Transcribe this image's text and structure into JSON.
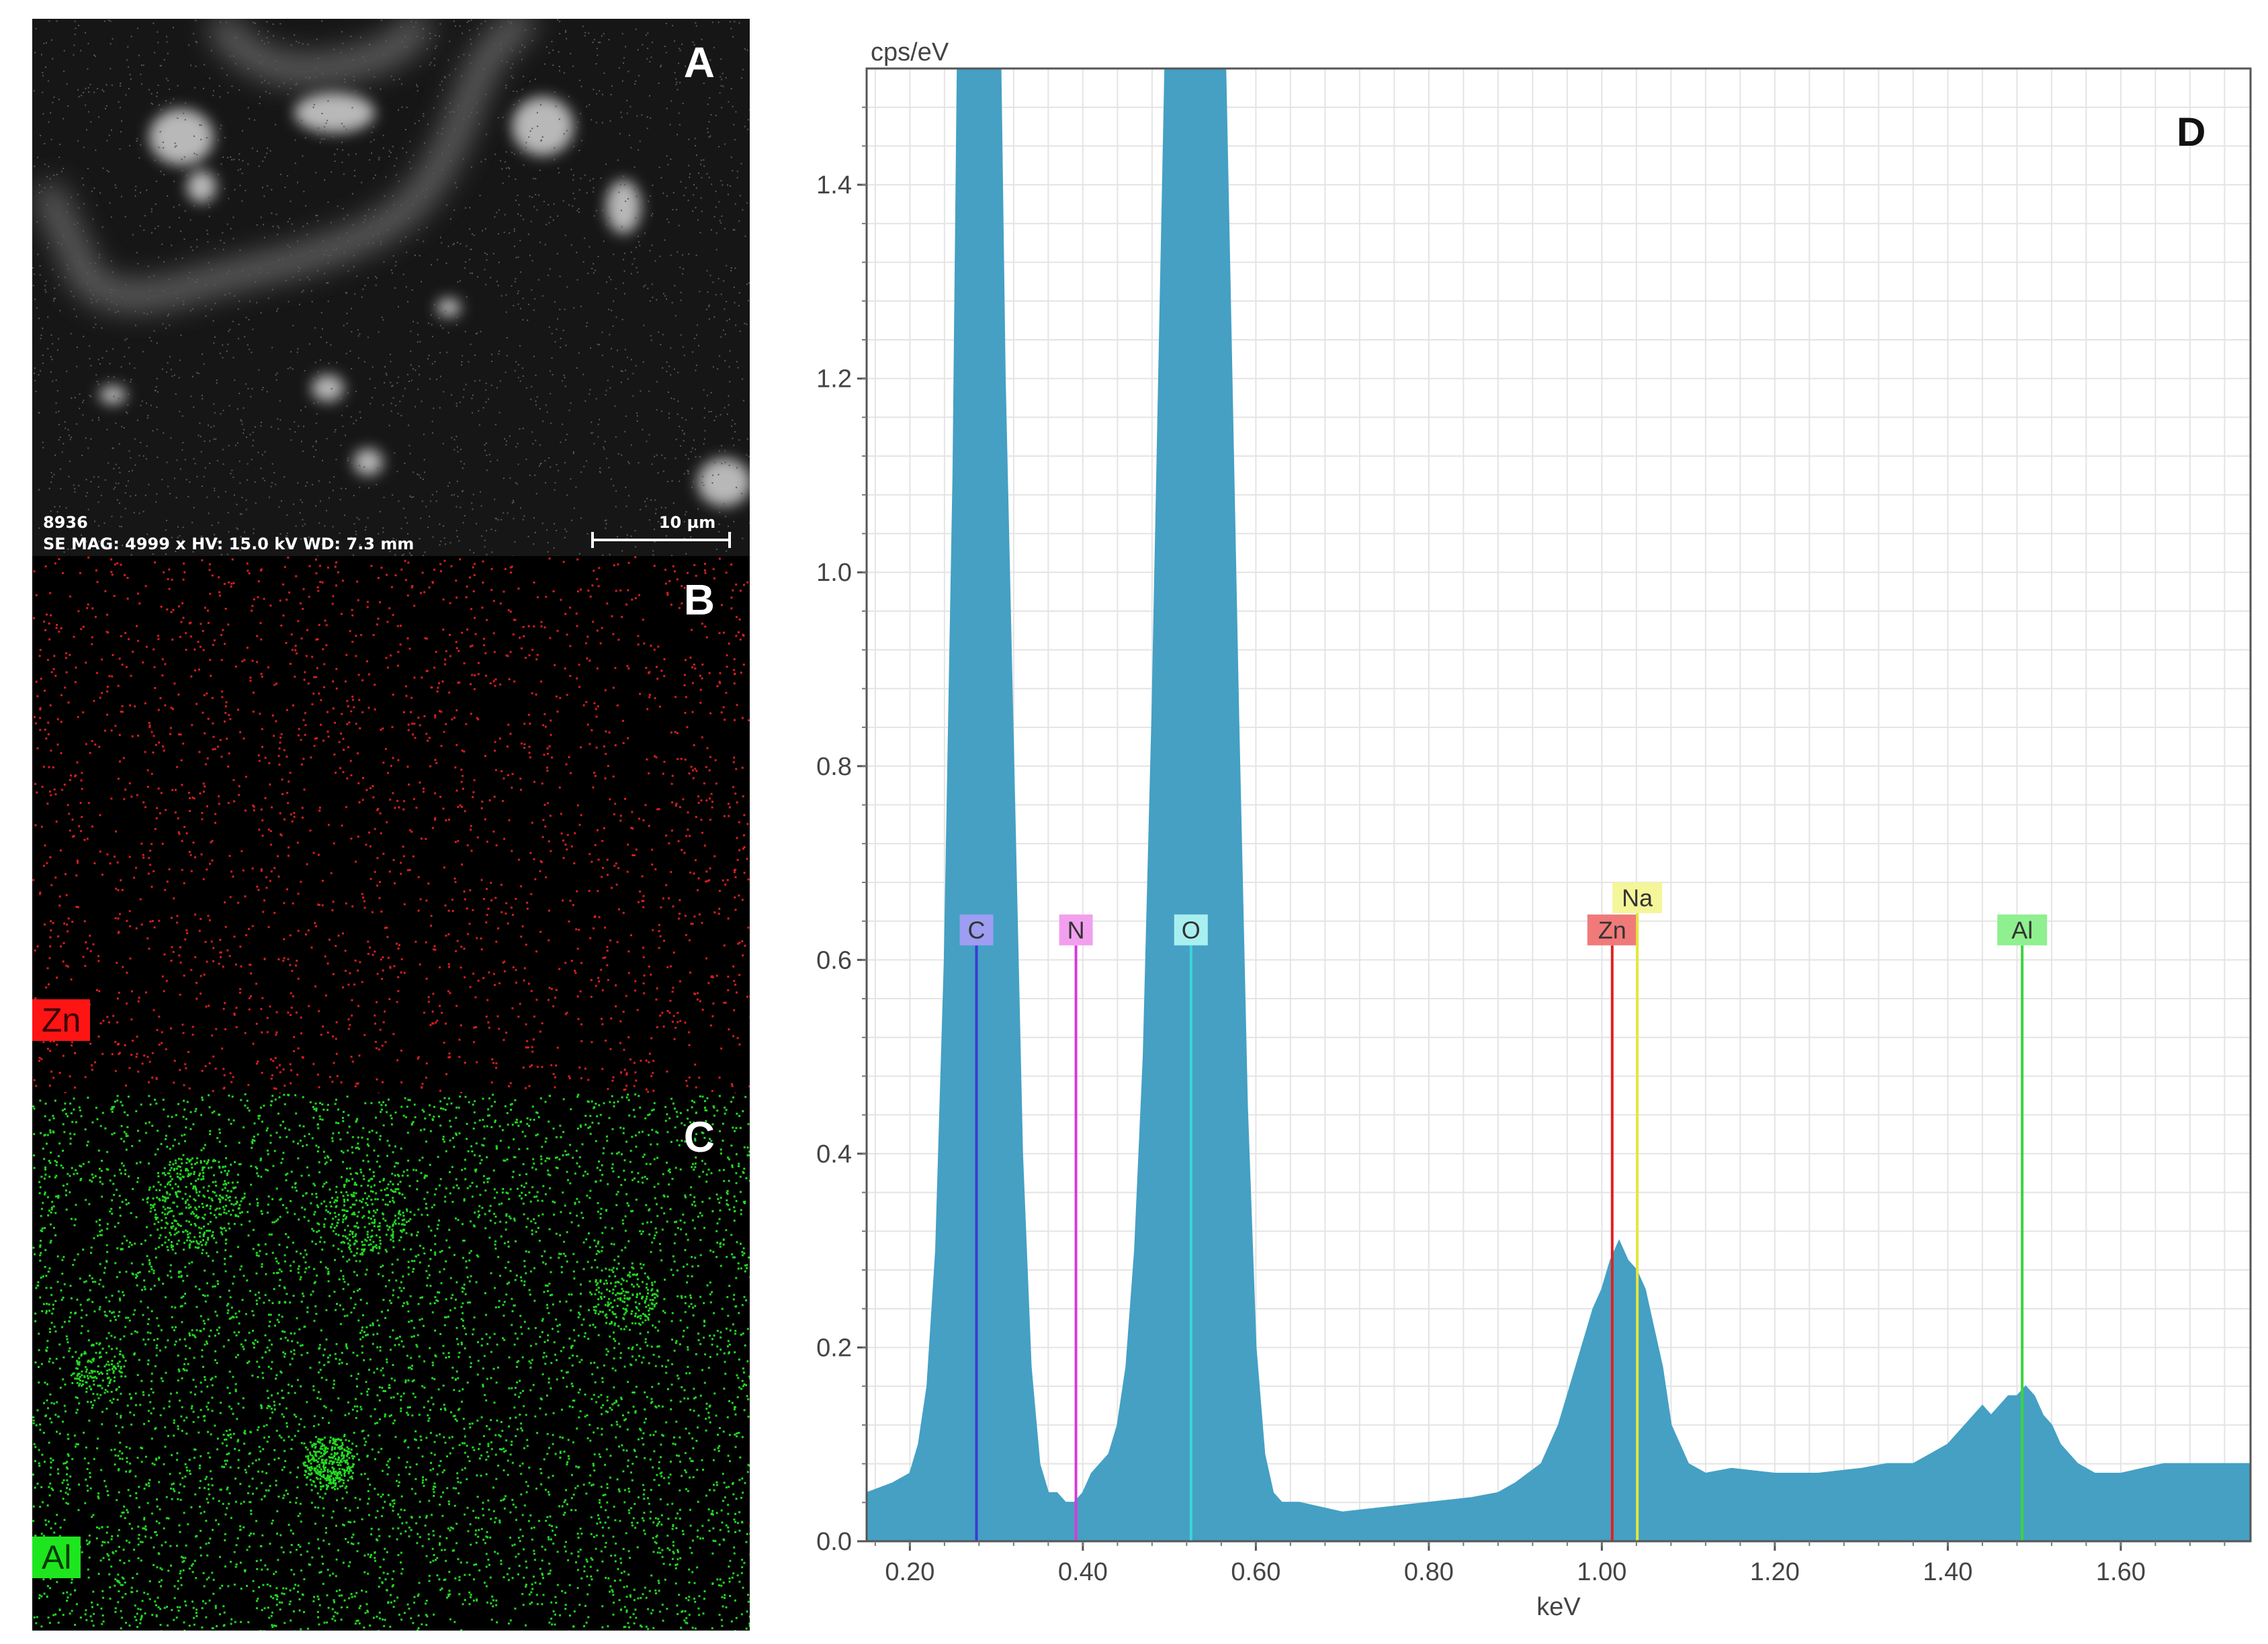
{
  "panels": {
    "a": {
      "letter": "A",
      "sem_id": "8936",
      "sem_params": "SE  MAG: 4999 x  HV: 15.0 kV  WD: 7.3 mm",
      "scale_label": "10 µm"
    },
    "b": {
      "letter": "B",
      "element": "Zn",
      "dot_color": "#d81e1e"
    },
    "c": {
      "letter": "C",
      "element": "Al",
      "dot_color": "#22d822"
    }
  },
  "chart_data": {
    "type": "area",
    "panel_letter": "D",
    "ylabel": "cps/eV",
    "xlabel": "keV",
    "xlim": [
      0.15,
      1.75
    ],
    "ylim": [
      0,
      1.52
    ],
    "x_ticks": [
      "0.20",
      "0.40",
      "0.60",
      "0.80",
      "1.00",
      "1.20",
      "1.40",
      "1.60"
    ],
    "y_ticks": [
      "0.0",
      "0.2",
      "0.4",
      "0.6",
      "0.8",
      "1.0",
      "1.2",
      "1.4"
    ],
    "grid": true,
    "fill_color": "#45a0c4",
    "spectrum": {
      "x": [
        0.15,
        0.18,
        0.2,
        0.21,
        0.22,
        0.23,
        0.24,
        0.25,
        0.255,
        0.26,
        0.305,
        0.31,
        0.32,
        0.33,
        0.34,
        0.35,
        0.36,
        0.37,
        0.38,
        0.39,
        0.4,
        0.41,
        0.42,
        0.43,
        0.44,
        0.45,
        0.46,
        0.47,
        0.48,
        0.49,
        0.495,
        0.565,
        0.57,
        0.58,
        0.59,
        0.6,
        0.61,
        0.62,
        0.63,
        0.65,
        0.7,
        0.75,
        0.8,
        0.85,
        0.88,
        0.9,
        0.93,
        0.95,
        0.97,
        0.99,
        1.0,
        1.01,
        1.02,
        1.025,
        1.03,
        1.04,
        1.05,
        1.06,
        1.07,
        1.08,
        1.1,
        1.12,
        1.15,
        1.2,
        1.25,
        1.3,
        1.33,
        1.36,
        1.38,
        1.4,
        1.42,
        1.44,
        1.45,
        1.46,
        1.47,
        1.48,
        1.49,
        1.5,
        1.51,
        1.52,
        1.53,
        1.55,
        1.57,
        1.6,
        1.65,
        1.7,
        1.75
      ],
      "y": [
        0.05,
        0.06,
        0.07,
        0.1,
        0.16,
        0.3,
        0.6,
        1.1,
        1.52,
        1.52,
        1.52,
        1.2,
        0.8,
        0.4,
        0.18,
        0.08,
        0.05,
        0.05,
        0.04,
        0.04,
        0.05,
        0.07,
        0.08,
        0.09,
        0.12,
        0.18,
        0.3,
        0.5,
        0.85,
        1.3,
        1.52,
        1.52,
        1.3,
        0.85,
        0.45,
        0.2,
        0.09,
        0.05,
        0.04,
        0.04,
        0.03,
        0.035,
        0.04,
        0.045,
        0.05,
        0.06,
        0.08,
        0.12,
        0.18,
        0.24,
        0.26,
        0.29,
        0.31,
        0.3,
        0.29,
        0.28,
        0.26,
        0.22,
        0.18,
        0.12,
        0.08,
        0.07,
        0.075,
        0.07,
        0.07,
        0.075,
        0.08,
        0.08,
        0.09,
        0.1,
        0.12,
        0.14,
        0.13,
        0.14,
        0.15,
        0.15,
        0.16,
        0.15,
        0.13,
        0.12,
        0.1,
        0.08,
        0.07,
        0.07,
        0.08,
        0.08,
        0.08
      ]
    },
    "element_lines": [
      {
        "label": "C",
        "energy": 0.277,
        "line_color": "#3a3ad6",
        "tag_color": "#9d9df2",
        "tag_row": 0
      },
      {
        "label": "N",
        "energy": 0.392,
        "line_color": "#d63ad6",
        "tag_color": "#f2a0ee",
        "tag_row": 0
      },
      {
        "label": "O",
        "energy": 0.525,
        "line_color": "#3ad6d6",
        "tag_color": "#a8f0f0",
        "tag_row": 0
      },
      {
        "label": "Zn",
        "energy": 1.012,
        "line_color": "#e02020",
        "tag_color": "#f07a7a",
        "tag_row": 0
      },
      {
        "label": "Na",
        "energy": 1.041,
        "line_color": "#e6e63a",
        "tag_color": "#f5f59a",
        "tag_row": 1
      },
      {
        "label": "Al",
        "energy": 1.486,
        "line_color": "#3ad63a",
        "tag_color": "#8ef08e",
        "tag_row": 0
      }
    ],
    "line_top_value": 0.615
  }
}
